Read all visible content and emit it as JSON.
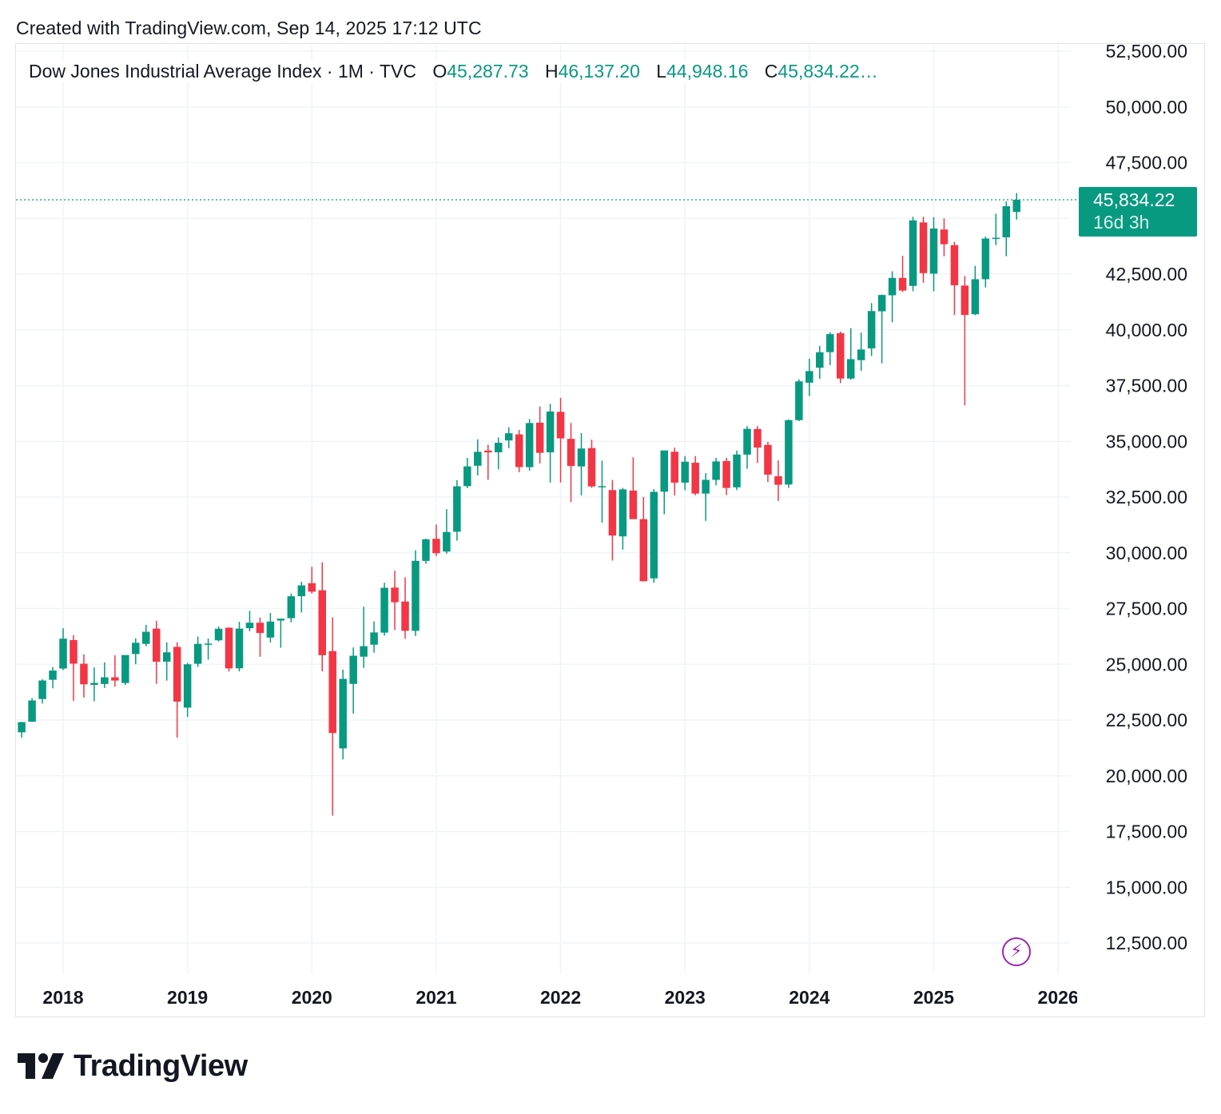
{
  "header": {
    "created_text": "Created with TradingView.com, Sep 14, 2025 17:12 UTC"
  },
  "legend": {
    "symbol": "Dow Jones Industrial Average Index · 1M · TVC",
    "o_label": "O",
    "o_value": "45,287.73",
    "h_label": "H",
    "h_value": "46,137.20",
    "l_label": "L",
    "l_value": "44,948.16",
    "c_label": "C",
    "c_value": "45,834.22…"
  },
  "last_price": {
    "value": "45,834.22",
    "countdown": "16d 3h"
  },
  "logo": {
    "text": "TradingView"
  },
  "colors": {
    "up": "#089981",
    "down": "#f23645",
    "grid": "#f0f3fa",
    "accent": "#9c27b0"
  },
  "icons": {
    "flash": "lightning-bolt-icon",
    "logo": "tradingview-logo-icon"
  },
  "chart_data": {
    "type": "candlestick",
    "title": "Dow Jones Industrial Average Index · 1M · TVC",
    "xlabel": "",
    "ylabel": "",
    "ylim": [
      11000,
      53600
    ],
    "y_ticks": [
      12500,
      15000,
      17500,
      20000,
      22500,
      25000,
      27500,
      30000,
      32500,
      35000,
      37500,
      40000,
      42500,
      45000,
      47500,
      50000,
      52500
    ],
    "y_tick_labels": [
      "12,500.00",
      "15,000.00",
      "17,500.00",
      "20,000.00",
      "22,500.00",
      "25,000.00",
      "27,500.00",
      "30,000.00",
      "32,500.00",
      "35,000.00",
      "37,500.00",
      "40,000.00",
      "42,500.00",
      "45,000.00",
      "47,500.00",
      "50,000.00",
      "52,500.00"
    ],
    "x_tick_labels": [
      "2018",
      "2019",
      "2020",
      "2021",
      "2022",
      "2023",
      "2024",
      "2025",
      "2026"
    ],
    "x_tick_dates": [
      "2018-01",
      "2019-01",
      "2020-01",
      "2021-01",
      "2022-01",
      "2023-01",
      "2024-01",
      "2025-01",
      "2026-01"
    ],
    "last_price_line": 45834.22,
    "grid": true,
    "series": [
      {
        "columns": [
          "date",
          "open",
          "high",
          "low",
          "close"
        ],
        "candles": [
          [
            "2017-09",
            21948,
            22419,
            21709,
            22405
          ],
          [
            "2017-10",
            22423,
            23485,
            22416,
            23377
          ],
          [
            "2017-11",
            23442,
            24328,
            23242,
            24272
          ],
          [
            "2017-12",
            24305,
            24876,
            23921,
            24719
          ],
          [
            "2018-01",
            24809,
            26617,
            24741,
            26149
          ],
          [
            "2018-02",
            26084,
            26307,
            23360,
            25029
          ],
          [
            "2018-03",
            25025,
            25449,
            23509,
            24103
          ],
          [
            "2018-04",
            24076,
            24858,
            23345,
            24163
          ],
          [
            "2018-05",
            24117,
            25086,
            23936,
            24416
          ],
          [
            "2018-06",
            24416,
            25402,
            23997,
            24271
          ],
          [
            "2018-07",
            24161,
            25400,
            24075,
            25415
          ],
          [
            "2018-08",
            25461,
            26168,
            25000,
            25965
          ],
          [
            "2018-09",
            25916,
            26769,
            25807,
            26458
          ],
          [
            "2018-10",
            26599,
            26952,
            24123,
            25116
          ],
          [
            "2018-11",
            25118,
            25981,
            24269,
            25538
          ],
          [
            "2018-12",
            25780,
            25980,
            21713,
            23327
          ],
          [
            "2019-01",
            23058,
            25056,
            22638,
            24999
          ],
          [
            "2019-02",
            25025,
            26242,
            24883,
            25916
          ],
          [
            "2019-03",
            25883,
            26155,
            25208,
            25929
          ],
          [
            "2019-04",
            26075,
            26696,
            26023,
            26593
          ],
          [
            "2019-05",
            26641,
            26657,
            24680,
            24815
          ],
          [
            "2019-06",
            24820,
            26907,
            24680,
            26600
          ],
          [
            "2019-07",
            26620,
            27398,
            26480,
            26864
          ],
          [
            "2019-08",
            26864,
            27095,
            25340,
            26403
          ],
          [
            "2019-09",
            26199,
            27306,
            25978,
            26917
          ],
          [
            "2019-10",
            26962,
            27044,
            25743,
            27046
          ],
          [
            "2019-11",
            27068,
            28175,
            26880,
            28051
          ],
          [
            "2019-12",
            28053,
            28702,
            27325,
            28538
          ],
          [
            "2020-01",
            28638,
            29374,
            28169,
            28256
          ],
          [
            "2020-02",
            28320,
            29568,
            24681,
            25409
          ],
          [
            "2020-03",
            25590,
            27102,
            18214,
            21917
          ],
          [
            "2020-04",
            21227,
            24764,
            20735,
            24346
          ],
          [
            "2020-05",
            24120,
            25758,
            22789,
            25383
          ],
          [
            "2020-06",
            25342,
            27581,
            24843,
            25813
          ],
          [
            "2020-07",
            25879,
            26922,
            25524,
            26428
          ],
          [
            "2020-08",
            26419,
            28659,
            26284,
            28430
          ],
          [
            "2020-09",
            28439,
            29199,
            26537,
            27782
          ],
          [
            "2020-10",
            27816,
            28902,
            26143,
            26502
          ],
          [
            "2020-11",
            26501,
            30116,
            26269,
            29639
          ],
          [
            "2020-12",
            29638,
            30637,
            29506,
            30606
          ],
          [
            "2021-01",
            30627,
            31272,
            29856,
            29983
          ],
          [
            "2021-02",
            30054,
            31961,
            29960,
            30932
          ],
          [
            "2021-03",
            30946,
            33259,
            30548,
            32982
          ],
          [
            "2021-04",
            32990,
            34257,
            32900,
            33875
          ],
          [
            "2021-05",
            33904,
            35091,
            33474,
            34529
          ],
          [
            "2021-06",
            34584,
            34849,
            33272,
            34503
          ],
          [
            "2021-07",
            34507,
            35171,
            33741,
            34935
          ],
          [
            "2021-08",
            35040,
            35631,
            34690,
            35361
          ],
          [
            "2021-09",
            35312,
            35510,
            33613,
            33844
          ],
          [
            "2021-10",
            33843,
            36000,
            33683,
            35820
          ],
          [
            "2021-11",
            35834,
            36565,
            34006,
            34484
          ],
          [
            "2021-12",
            34507,
            36680,
            33150,
            36338
          ],
          [
            "2022-01",
            36321,
            36953,
            33150,
            35132
          ],
          [
            "2022-02",
            35111,
            35825,
            32272,
            33893
          ],
          [
            "2022-03",
            33874,
            35372,
            32578,
            34678
          ],
          [
            "2022-04",
            34700,
            35073,
            32914,
            32977
          ],
          [
            "2022-05",
            32938,
            34130,
            31353,
            32990
          ],
          [
            "2022-06",
            32813,
            33272,
            29653,
            30775
          ],
          [
            "2022-07",
            30737,
            32910,
            30143,
            32845
          ],
          [
            "2022-08",
            32790,
            34282,
            31551,
            31510
          ],
          [
            "2022-09",
            31510,
            32505,
            28715,
            28725
          ],
          [
            "2022-10",
            28855,
            32853,
            28660,
            32733
          ],
          [
            "2022-11",
            32742,
            34589,
            31727,
            34590
          ],
          [
            "2022-12",
            34533,
            34712,
            32573,
            33147
          ],
          [
            "2023-01",
            33148,
            34342,
            32812,
            34086
          ],
          [
            "2023-02",
            34040,
            34335,
            32580,
            32657
          ],
          [
            "2023-03",
            32656,
            33572,
            31430,
            33274
          ],
          [
            "2023-04",
            33272,
            34257,
            33029,
            34098
          ],
          [
            "2023-05",
            34117,
            34258,
            32586,
            32908
          ],
          [
            "2023-06",
            32936,
            34588,
            32810,
            34408
          ],
          [
            "2023-07",
            34404,
            35680,
            33766,
            35560
          ],
          [
            "2023-08",
            35551,
            35679,
            34029,
            34722
          ],
          [
            "2023-09",
            34837,
            34977,
            33176,
            33508
          ],
          [
            "2023-10",
            33434,
            34144,
            32327,
            33053
          ],
          [
            "2023-11",
            33062,
            35987,
            32910,
            35951
          ],
          [
            "2023-12",
            35950,
            37778,
            35906,
            37690
          ],
          [
            "2024-01",
            37630,
            38704,
            37034,
            38150
          ],
          [
            "2024-02",
            38300,
            39282,
            37800,
            38996
          ],
          [
            "2024-03",
            39000,
            39889,
            38420,
            39807
          ],
          [
            "2024-04",
            39849,
            39925,
            37612,
            37816
          ],
          [
            "2024-05",
            37815,
            40077,
            37760,
            38686
          ],
          [
            "2024-06",
            38640,
            39875,
            38163,
            39119
          ],
          [
            "2024-07",
            39170,
            41199,
            38830,
            40843
          ],
          [
            "2024-08",
            40831,
            41585,
            38500,
            41563
          ],
          [
            "2024-09",
            41550,
            42628,
            40341,
            42330
          ],
          [
            "2024-10",
            42330,
            43325,
            41700,
            41763
          ],
          [
            "2024-11",
            41970,
            45071,
            41734,
            44911
          ],
          [
            "2024-12",
            44817,
            45074,
            42114,
            42544
          ],
          [
            "2025-01",
            42520,
            45054,
            41732,
            44545
          ],
          [
            "2025-02",
            44500,
            45000,
            43300,
            43841
          ],
          [
            "2025-03",
            43800,
            43950,
            40661,
            42001
          ],
          [
            "2025-04",
            41986,
            42414,
            36612,
            40669
          ],
          [
            "2025-05",
            40700,
            42872,
            40653,
            42270
          ],
          [
            "2025-06",
            42270,
            44185,
            41900,
            44095
          ],
          [
            "2025-07",
            44100,
            45207,
            43800,
            44130
          ],
          [
            "2025-08",
            44150,
            45758,
            43300,
            45545
          ],
          [
            "2025-09",
            45287.73,
            46137.2,
            44948.16,
            45834.22
          ]
        ]
      }
    ]
  }
}
